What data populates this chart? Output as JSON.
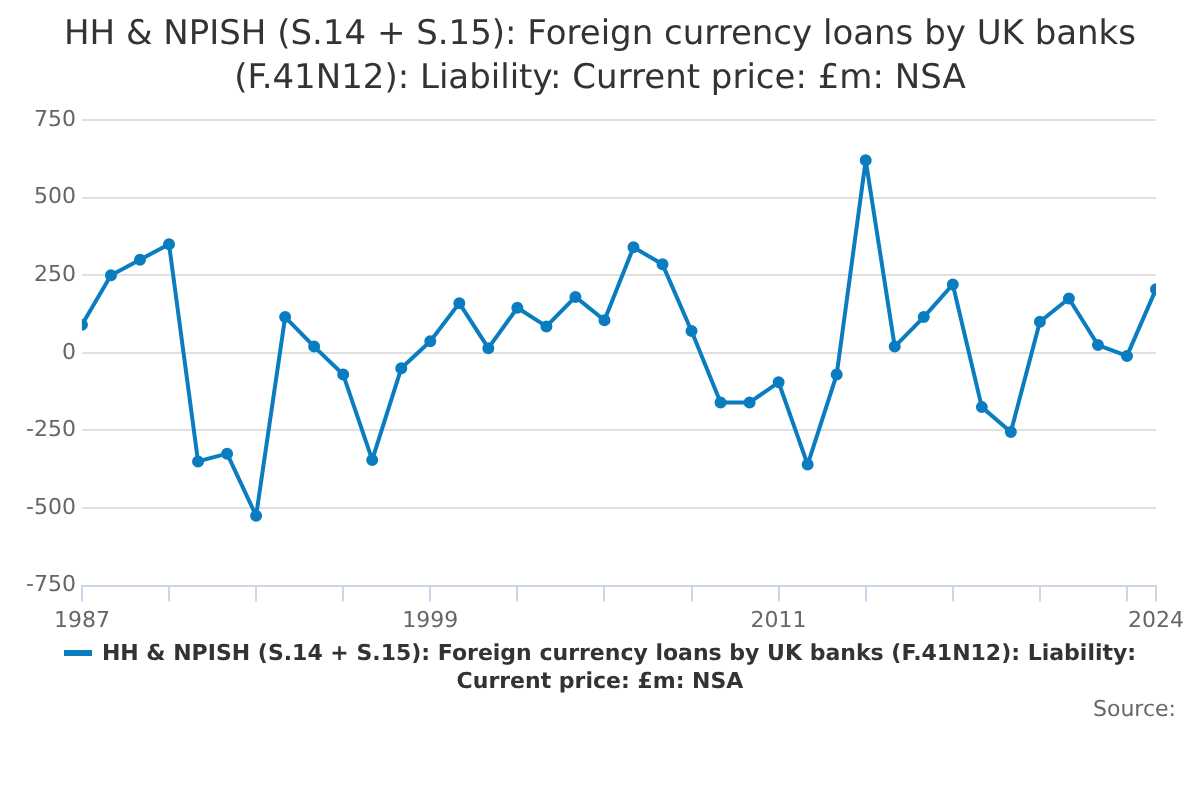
{
  "chart_data": {
    "type": "line",
    "title": "HH & NPISH (S.14 + S.15): Foreign currency loans by UK banks (F.41N12): Liability: Current price: £m: NSA",
    "x": [
      1987,
      1988,
      1989,
      1990,
      1991,
      1992,
      1993,
      1994,
      1995,
      1996,
      1997,
      1998,
      1999,
      2000,
      2001,
      2002,
      2003,
      2004,
      2005,
      2006,
      2007,
      2008,
      2009,
      2010,
      2011,
      2012,
      2013,
      2014,
      2015,
      2016,
      2017,
      2018,
      2019,
      2020,
      2021,
      2022,
      2023,
      2024
    ],
    "series": [
      {
        "name": "HH & NPISH (S.14 + S.15): Foreign currency loans by UK banks (F.41N12): Liability: Current price: £m: NSA",
        "color": "#0a7dc0",
        "values": [
          90,
          250,
          300,
          350,
          -350,
          -325,
          -525,
          115,
          20,
          -70,
          -345,
          -50,
          37,
          160,
          15,
          145,
          85,
          180,
          105,
          340,
          285,
          70,
          -160,
          -160,
          -95,
          -360,
          -70,
          620,
          20,
          115,
          220,
          -175,
          -255,
          100,
          175,
          25,
          -10,
          205
        ]
      }
    ],
    "xlim": [
      1987,
      2024
    ],
    "xticks": [
      1987,
      {
        "value": 1990,
        "label": null
      },
      {
        "value": 1993,
        "label": null
      },
      {
        "value": 1996,
        "label": null
      },
      1999,
      {
        "value": 2002,
        "label": null
      },
      {
        "value": 2005,
        "label": null
      },
      {
        "value": 2008,
        "label": null
      },
      2011,
      {
        "value": 2014,
        "label": null
      },
      {
        "value": 2017,
        "label": null
      },
      {
        "value": 2020,
        "label": null
      },
      {
        "value": 2023,
        "label": null
      },
      2024
    ],
    "ylim": [
      -750,
      750
    ],
    "yticks": [
      -750,
      -500,
      -250,
      0,
      250,
      500,
      750
    ],
    "grid": "y",
    "legend": "bottom",
    "marker": "circle",
    "line_style": "solid",
    "annotations": [
      "Source:"
    ]
  }
}
